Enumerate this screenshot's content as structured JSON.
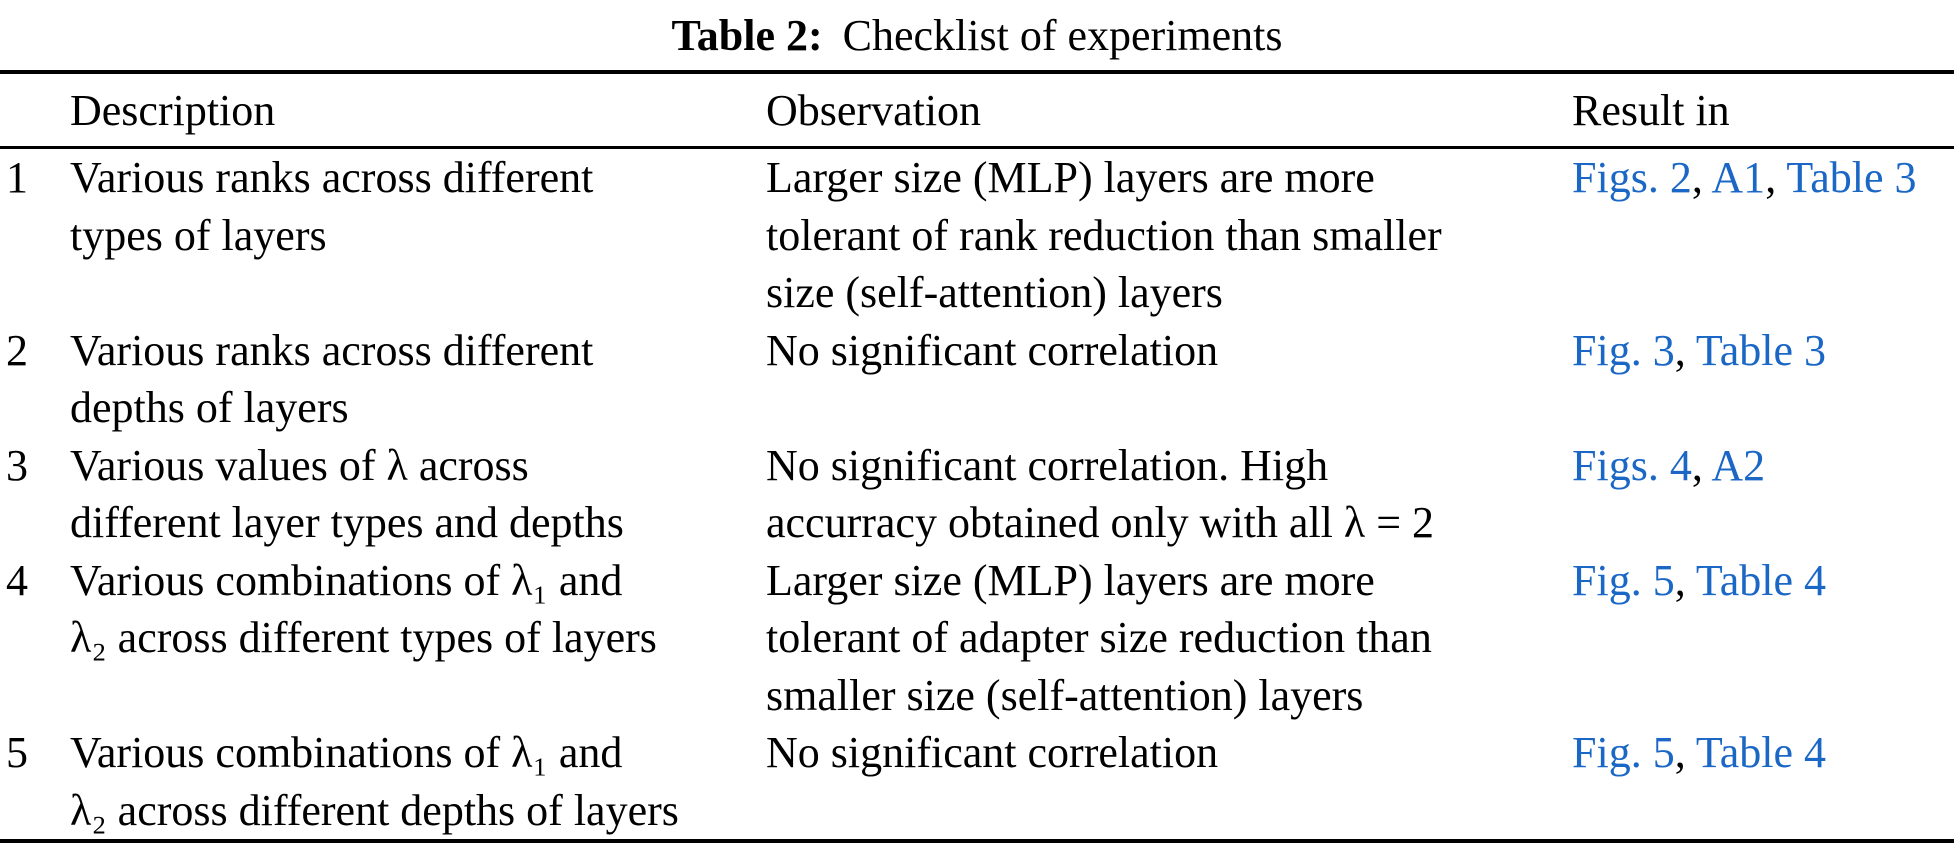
{
  "caption": {
    "label": "Table 2:",
    "text": "Checklist of experiments"
  },
  "colors": {
    "link_blue": "#1b67c6",
    "text_black": "#000000"
  },
  "table": {
    "headers": {
      "description": "Description",
      "observation": "Observation",
      "result_in": "Result in"
    },
    "rows": [
      {
        "num": "1",
        "description_lines": [
          "Various ranks across different",
          "types of layers"
        ],
        "observation_lines": [
          "Larger size (MLP) layers are more",
          "tolerant of rank reduction than smaller",
          "size (self-attention) layers"
        ],
        "results": [
          "Figs. 2",
          "A1",
          "Table 3"
        ]
      },
      {
        "num": "2",
        "description_lines": [
          "Various ranks across different",
          "depths of layers"
        ],
        "observation_lines": [
          "No significant correlation"
        ],
        "results": [
          "Fig. 3",
          "Table 3"
        ]
      },
      {
        "num": "3",
        "description_lines": [
          "Various values of λ across",
          "different layer types and depths"
        ],
        "observation_lines": [
          "No significant correlation. High",
          "accurracy obtained only with all λ = 2"
        ],
        "results": [
          "Figs. 4",
          "A2"
        ]
      },
      {
        "num": "4",
        "description_lines": [
          "Various combinations of λ₁ and",
          "λ₂ across different types of layers"
        ],
        "observation_lines": [
          "Larger size (MLP) layers are more",
          "tolerant of adapter size reduction than",
          "smaller size (self-attention) layers"
        ],
        "results": [
          "Fig. 5",
          "Table 4"
        ]
      },
      {
        "num": "5",
        "description_lines": [
          "Various combinations of λ₁ and",
          "λ₂ across different depths of layers"
        ],
        "observation_lines": [
          "No significant correlation"
        ],
        "results": [
          "Fig. 5",
          "Table 4"
        ]
      }
    ],
    "result_separator": ", "
  }
}
